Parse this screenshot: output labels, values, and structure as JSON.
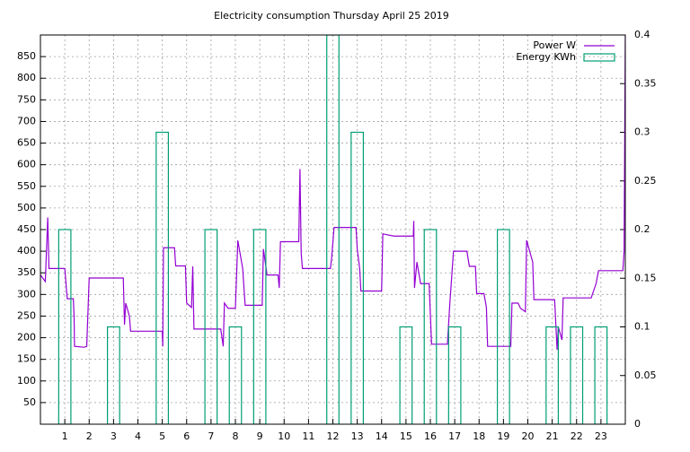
{
  "chart_data": {
    "type": "line",
    "title": "Electricity consumption Thursday April 25 2019",
    "xlim": [
      0,
      24
    ],
    "xticks": [
      1,
      2,
      3,
      4,
      5,
      6,
      7,
      8,
      9,
      10,
      11,
      12,
      13,
      14,
      15,
      16,
      17,
      18,
      19,
      20,
      21,
      22,
      23
    ],
    "ylim": [
      0,
      900
    ],
    "yticks": [
      50,
      100,
      150,
      200,
      250,
      300,
      350,
      400,
      450,
      500,
      550,
      600,
      650,
      700,
      750,
      800,
      850
    ],
    "y2lim": [
      0,
      0.4
    ],
    "y2ticks": [
      0,
      0.05,
      0.1,
      0.15,
      0.2,
      0.25,
      0.3,
      0.35,
      0.4
    ],
    "grid": true,
    "legend": "top-right",
    "series": [
      {
        "name": "Power W",
        "color": "#9400d3",
        "type": "line",
        "x": [
          0,
          0.2,
          0.3,
          0.35,
          1.0,
          1.1,
          1.35,
          1.38,
          1.4,
          1.8,
          1.9,
          2.0,
          3.4,
          3.45,
          3.5,
          3.65,
          3.7,
          5.0,
          5.02,
          5.05,
          5.5,
          5.55,
          5.95,
          6.0,
          6.2,
          6.25,
          6.3,
          7.4,
          7.5,
          7.55,
          7.7,
          8.0,
          8.1,
          8.3,
          8.4,
          9.1,
          9.15,
          9.3,
          9.75,
          9.8,
          9.85,
          10.6,
          10.65,
          10.7,
          10.75,
          11.9,
          11.95,
          12.05,
          12.95,
          13.0,
          13.1,
          13.15,
          14.0,
          14.05,
          14.5,
          15.3,
          15.32,
          15.35,
          15.45,
          15.6,
          15.95,
          16.05,
          16.7,
          16.8,
          16.95,
          17.5,
          17.6,
          17.85,
          17.9,
          18.2,
          18.3,
          18.35,
          19.3,
          19.35,
          19.6,
          19.7,
          19.9,
          19.95,
          20.2,
          20.25,
          21.1,
          21.2,
          21.25,
          21.4,
          21.45,
          22.6,
          22.8,
          22.9,
          23.9,
          23.95,
          24
        ],
        "values": [
          345,
          330,
          478,
          360,
          360,
          290,
          290,
          250,
          180,
          178,
          180,
          338,
          338,
          230,
          280,
          250,
          215,
          215,
          180,
          408,
          408,
          366,
          366,
          280,
          270,
          365,
          220,
          220,
          180,
          280,
          268,
          268,
          425,
          360,
          275,
          275,
          405,
          345,
          345,
          315,
          422,
          422,
          590,
          395,
          360,
          360,
          385,
          455,
          455,
          405,
          360,
          308,
          308,
          440,
          435,
          435,
          470,
          315,
          375,
          325,
          325,
          185,
          185,
          280,
          400,
          400,
          365,
          365,
          302,
          302,
          270,
          180,
          180,
          280,
          280,
          268,
          260,
          425,
          375,
          288,
          288,
          172,
          225,
          195,
          292,
          292,
          325,
          355,
          355,
          400,
          900
        ]
      },
      {
        "name": "Energy KWh",
        "color": "#009e73",
        "type": "bar",
        "axis": "y2",
        "x": [
          1,
          3,
          5,
          7,
          8,
          9,
          12,
          13,
          15,
          16,
          17,
          19,
          21,
          22,
          23
        ],
        "values": [
          0.2,
          0.1,
          0.3,
          0.2,
          0.1,
          0.2,
          0.4,
          0.3,
          0.1,
          0.2,
          0.1,
          0.2,
          0.1,
          0.1,
          0.1
        ]
      }
    ]
  }
}
